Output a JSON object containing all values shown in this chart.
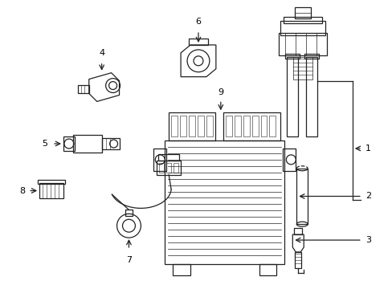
{
  "background_color": "#ffffff",
  "line_color": "#222222",
  "label_color": "#000000",
  "fig_width": 4.89,
  "fig_height": 3.6,
  "dpi": 100
}
